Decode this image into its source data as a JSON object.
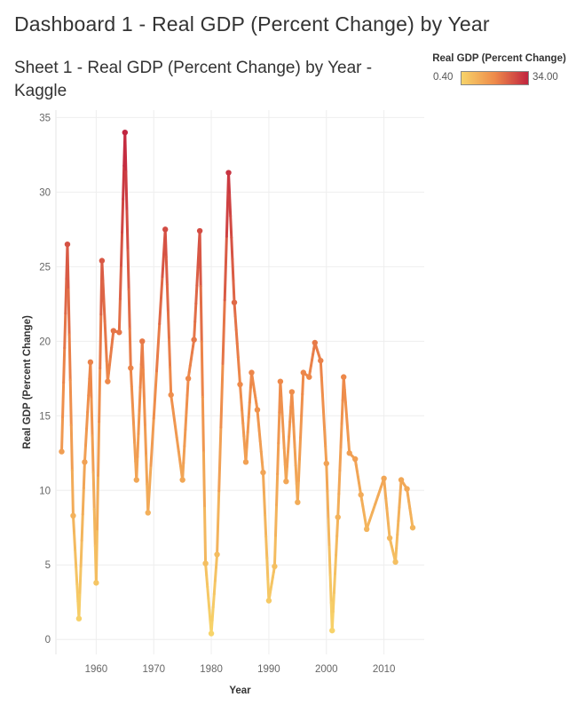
{
  "dashboard_title": "Dashboard 1 - Real GDP (Percent Change) by Year",
  "sheet_title": "Sheet 1 - Real GDP (Percent Change) by Year - Kaggle",
  "legend": {
    "title": "Real GDP (Percent Change)",
    "min_label": "0.40",
    "max_label": "34.00",
    "min": 0.4,
    "max": 34.0,
    "color_low": "#f7d46a",
    "color_mid": "#ee8a4a",
    "color_high": "#c1243f"
  },
  "chart_data": {
    "type": "line",
    "title": "Sheet 1 - Real GDP (Percent Change) by Year - Kaggle",
    "xlabel": "Year",
    "ylabel": "Real GDP (Percent Change)",
    "xlim": [
      1953,
      2017
    ],
    "ylim": [
      -1,
      35.5
    ],
    "x_ticks": [
      1960,
      1970,
      1980,
      1990,
      2000,
      2010
    ],
    "y_ticks": [
      0,
      5,
      10,
      15,
      20,
      25,
      30,
      35
    ],
    "grid": true,
    "legend_position": "top-right",
    "series": [
      {
        "x": [
          1954,
          1955,
          1956,
          1957,
          1958,
          1959,
          1960,
          1961,
          1962,
          1963,
          1964,
          1965,
          1966,
          1967,
          1968,
          1969,
          1972,
          1973,
          1975,
          1976,
          1977,
          1978,
          1979,
          1980,
          1981,
          1983,
          1984,
          1985,
          1986,
          1987,
          1988,
          1989,
          1990,
          1991,
          1992,
          1993,
          1994,
          1995,
          1996,
          1997,
          1998,
          1999,
          2000,
          2001,
          2002,
          2003,
          2004,
          2005,
          2006,
          2007,
          2010,
          2011,
          2012,
          2013,
          2014,
          2015
        ],
        "values": [
          12.6,
          26.5,
          8.3,
          1.4,
          11.9,
          18.6,
          3.8,
          25.4,
          17.3,
          20.7,
          20.6,
          34.0,
          18.2,
          10.7,
          20.0,
          8.5,
          27.5,
          16.4,
          10.7,
          17.5,
          20.1,
          27.4,
          5.1,
          0.4,
          5.7,
          31.3,
          22.6,
          17.1,
          11.9,
          17.9,
          15.4,
          11.2,
          2.6,
          4.9,
          17.3,
          10.6,
          16.6,
          9.2,
          17.9,
          17.6,
          19.9,
          18.7,
          11.8,
          0.6,
          8.2,
          17.6,
          12.5,
          12.1,
          9.7,
          7.4,
          10.8,
          6.8,
          5.2,
          10.7,
          10.1,
          7.5
        ]
      }
    ]
  }
}
